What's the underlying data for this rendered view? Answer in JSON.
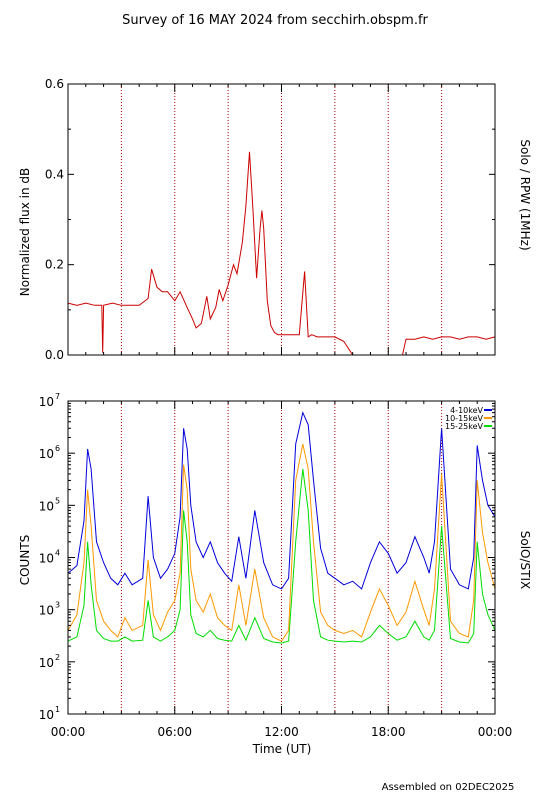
{
  "figure": {
    "title": "Survey of 16 MAY 2024 from secchirh.obspm.fr",
    "footer": "Assembled on 02DEC2025",
    "colors": {
      "background": "#ffffff",
      "axes": "#000000",
      "grid": "#b00000"
    }
  },
  "chart_data": [
    {
      "type": "line",
      "ylabel": "Normalized flux in dB",
      "right_label": "Solo / RPW (1MHz)",
      "ylim": [
        0,
        0.6
      ],
      "yticks": [
        "0.0",
        "0.2",
        "0.4",
        "0.6"
      ],
      "xlim_hours": [
        0,
        24
      ],
      "series": [
        {
          "color": "#cc0000",
          "x_hours": [
            0.0,
            0.5,
            1.0,
            1.5,
            1.9,
            1.95,
            2.0,
            2.5,
            3.0,
            3.5,
            4.0,
            4.5,
            4.7,
            5.0,
            5.3,
            5.6,
            6.0,
            6.3,
            6.7,
            7.0,
            7.2,
            7.5,
            7.8,
            8.0,
            8.3,
            8.5,
            8.7,
            9.0,
            9.3,
            9.5,
            9.8,
            10.0,
            10.2,
            10.4,
            10.6,
            10.8,
            10.9,
            11.0,
            11.2,
            11.4,
            11.6,
            11.8,
            12.0,
            12.5,
            13.0,
            13.3,
            13.5,
            13.7,
            14.0,
            14.5,
            15.0,
            15.5,
            16.0
          ],
          "y": [
            0.115,
            0.11,
            0.115,
            0.11,
            0.11,
            0.005,
            0.11,
            0.115,
            0.11,
            0.11,
            0.11,
            0.125,
            0.19,
            0.15,
            0.14,
            0.14,
            0.12,
            0.14,
            0.105,
            0.08,
            0.06,
            0.07,
            0.13,
            0.08,
            0.105,
            0.145,
            0.12,
            0.155,
            0.2,
            0.18,
            0.25,
            0.33,
            0.45,
            0.32,
            0.17,
            0.28,
            0.32,
            0.28,
            0.12,
            0.065,
            0.05,
            0.045,
            0.045,
            0.045,
            0.045,
            0.185,
            0.04,
            0.045,
            0.04,
            0.04,
            0.04,
            0.03,
            0.0
          ]
        },
        {
          "color": "#cc0000",
          "x_hours": [
            18.8,
            19.0,
            19.5,
            20.0,
            20.5,
            21.0,
            21.5,
            22.0,
            22.5,
            23.0,
            23.5,
            24.0
          ],
          "y": [
            0.0,
            0.035,
            0.035,
            0.04,
            0.035,
            0.04,
            0.04,
            0.035,
            0.04,
            0.04,
            0.035,
            0.04
          ]
        }
      ]
    },
    {
      "type": "line",
      "ylabel": "COUNTS",
      "right_label": "SolO/STIX",
      "xlabel": "Time (UT)",
      "yscale": "log",
      "ylim": [
        10,
        10000000
      ],
      "ytick_exponents": [
        "1",
        "2",
        "3",
        "4",
        "5",
        "6",
        "7"
      ],
      "x_ticklabels": [
        "00:00",
        "06:00",
        "12:00",
        "18:00",
        "00:00"
      ],
      "xlim_hours": [
        0,
        24
      ],
      "series": [
        {
          "name": "4-10keV",
          "color": "#0000dd",
          "x_hours": [
            0.0,
            0.5,
            0.9,
            1.1,
            1.3,
            1.6,
            2.0,
            2.4,
            2.8,
            3.2,
            3.6,
            4.2,
            4.5,
            4.8,
            5.2,
            5.6,
            6.0,
            6.3,
            6.5,
            6.7,
            6.9,
            7.2,
            7.6,
            8.0,
            8.4,
            8.8,
            9.2,
            9.6,
            10.0,
            10.5,
            11.0,
            11.5,
            12.0,
            12.4,
            12.8,
            13.2,
            13.5,
            13.8,
            14.2,
            14.6,
            15.0,
            15.5,
            16.0,
            16.5,
            17.0,
            17.5,
            18.0,
            18.5,
            19.0,
            19.5,
            20.0,
            20.3,
            20.6,
            21.0,
            21.5,
            22.0,
            22.5,
            22.8,
            23.0,
            23.3,
            23.6,
            24.0
          ],
          "y": [
            5000,
            7000,
            50000,
            1200000,
            500000,
            20000,
            8000,
            4000,
            3000,
            5000,
            3000,
            4000,
            150000,
            10000,
            4000,
            6000,
            12000,
            60000,
            3000000,
            1200000,
            100000,
            20000,
            10000,
            20000,
            8000,
            5000,
            3500,
            25000,
            4000,
            80000,
            8000,
            3000,
            2500,
            4000,
            1500000,
            6000000,
            3500000,
            300000,
            15000,
            5000,
            4000,
            3000,
            3500,
            2500,
            8000,
            20000,
            12000,
            5000,
            8000,
            25000,
            10000,
            5000,
            20000,
            3000000,
            6000,
            3000,
            2500,
            10000,
            1400000,
            300000,
            100000,
            60000
          ]
        },
        {
          "name": "10-15keV",
          "color": "#ff9900",
          "x_hours": [
            0.0,
            0.5,
            0.9,
            1.1,
            1.3,
            1.6,
            2.0,
            2.4,
            2.8,
            3.2,
            3.6,
            4.2,
            4.5,
            4.8,
            5.2,
            5.6,
            6.0,
            6.3,
            6.5,
            6.7,
            6.9,
            7.2,
            7.6,
            8.0,
            8.4,
            8.8,
            9.2,
            9.6,
            10.0,
            10.5,
            11.0,
            11.5,
            12.0,
            12.4,
            12.8,
            13.2,
            13.5,
            13.8,
            14.2,
            14.6,
            15.0,
            15.5,
            16.0,
            16.5,
            17.0,
            17.5,
            18.0,
            18.5,
            19.0,
            19.5,
            20.0,
            20.3,
            20.6,
            21.0,
            21.5,
            22.0,
            22.5,
            22.8,
            23.0,
            23.3,
            23.6,
            24.0
          ],
          "y": [
            400,
            800,
            8000,
            200000,
            40000,
            1500,
            600,
            400,
            300,
            700,
            400,
            500,
            9000,
            800,
            400,
            900,
            1500,
            5000,
            600000,
            200000,
            6000,
            1500,
            900,
            2000,
            700,
            500,
            400,
            3000,
            500,
            6000,
            700,
            300,
            250,
            400,
            300000,
            1500000,
            500000,
            20000,
            900,
            500,
            400,
            350,
            400,
            300,
            900,
            2500,
            1200,
            500,
            900,
            3500,
            1000,
            500,
            2500,
            400000,
            600,
            350,
            300,
            1500,
            300000,
            30000,
            8000,
            2500
          ]
        },
        {
          "name": "15-25keV",
          "color": "#00dd00",
          "x_hours": [
            0.0,
            0.5,
            0.9,
            1.1,
            1.3,
            1.6,
            2.0,
            2.4,
            2.8,
            3.2,
            3.6,
            4.2,
            4.5,
            4.8,
            5.2,
            5.6,
            6.0,
            6.3,
            6.5,
            6.7,
            6.9,
            7.2,
            7.6,
            8.0,
            8.4,
            8.8,
            9.2,
            9.6,
            10.0,
            10.5,
            11.0,
            11.5,
            12.0,
            12.4,
            12.8,
            13.2,
            13.5,
            13.8,
            14.2,
            14.6,
            15.0,
            15.5,
            16.0,
            16.5,
            17.0,
            17.5,
            18.0,
            18.5,
            19.0,
            19.5,
            20.0,
            20.3,
            20.6,
            21.0,
            21.5,
            22.0,
            22.5,
            22.8,
            23.0,
            23.3,
            23.6,
            24.0
          ],
          "y": [
            250,
            300,
            1200,
            20000,
            3000,
            400,
            280,
            250,
            250,
            300,
            250,
            260,
            1500,
            300,
            250,
            300,
            400,
            1000,
            80000,
            20000,
            800,
            350,
            300,
            400,
            280,
            260,
            250,
            500,
            260,
            700,
            280,
            240,
            230,
            250,
            20000,
            500000,
            80000,
            1500,
            300,
            260,
            250,
            240,
            250,
            240,
            300,
            500,
            350,
            260,
            300,
            600,
            300,
            260,
            400,
            40000,
            280,
            240,
            230,
            350,
            20000,
            2000,
            800,
            400
          ]
        }
      ]
    }
  ]
}
